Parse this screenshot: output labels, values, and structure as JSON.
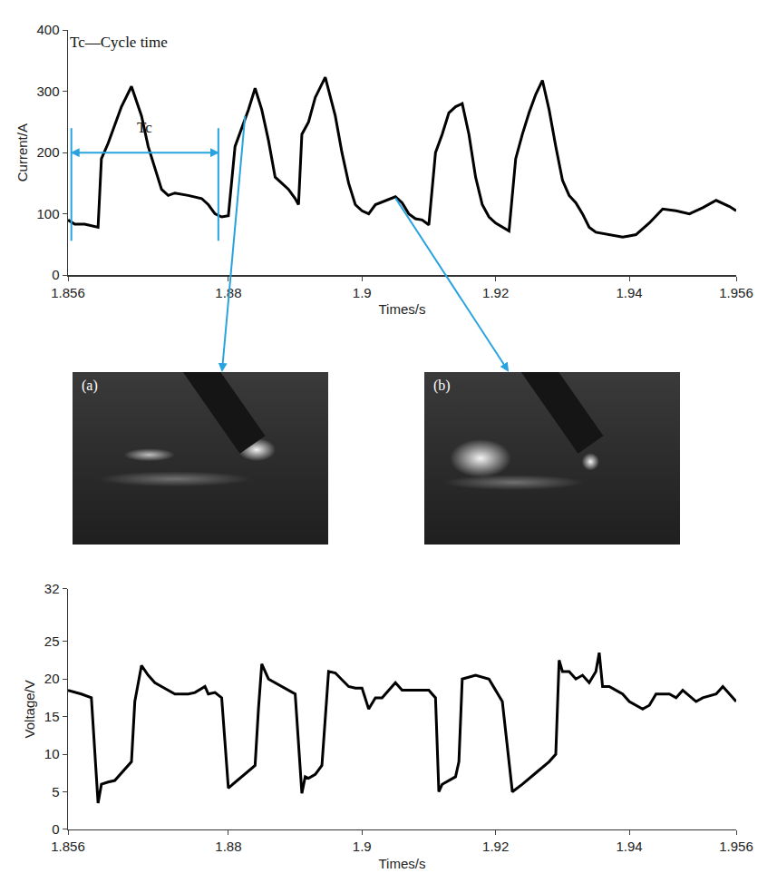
{
  "chart_data": [
    {
      "type": "line",
      "x_label": "Times/s",
      "y_label": "Current/A",
      "annotation": "Tc—Cycle time",
      "cycle": {
        "start": 1.8565,
        "end": 1.8785,
        "label": "Tc"
      },
      "callouts": [
        {
          "x": 1.8825,
          "y": 260,
          "photo": "(a)"
        },
        {
          "x": 1.905,
          "y": 126,
          "photo": "(b)"
        }
      ],
      "xlim": [
        1.856,
        1.956
      ],
      "xticks": [
        1.856,
        1.88,
        1.9,
        1.92,
        1.94,
        1.956
      ],
      "ylim": [
        0,
        400
      ],
      "yticks": [
        0,
        100,
        200,
        300,
        400
      ],
      "grid": false,
      "series": [
        {
          "color": "#000000",
          "x": [
            1.856,
            1.857,
            1.8585,
            1.8595,
            1.8605,
            1.861,
            1.862,
            1.863,
            1.864,
            1.8655,
            1.867,
            1.868,
            1.869,
            1.87,
            1.871,
            1.872,
            1.874,
            1.876,
            1.877,
            1.878,
            1.879,
            1.88,
            1.881,
            1.882,
            1.883,
            1.884,
            1.885,
            1.886,
            1.887,
            1.888,
            1.889,
            1.89,
            1.8905,
            1.891,
            1.892,
            1.893,
            1.8945,
            1.896,
            1.897,
            1.898,
            1.899,
            1.9,
            1.901,
            1.902,
            1.9035,
            1.905,
            1.906,
            1.907,
            1.908,
            1.909,
            1.91,
            1.911,
            1.912,
            1.913,
            1.914,
            1.915,
            1.916,
            1.917,
            1.918,
            1.919,
            1.92,
            1.921,
            1.922,
            1.923,
            1.924,
            1.925,
            1.926,
            1.927,
            1.928,
            1.929,
            1.93,
            1.931,
            1.932,
            1.933,
            1.934,
            1.935,
            1.936,
            1.937,
            1.938,
            1.939,
            1.94,
            1.941,
            1.943,
            1.945,
            1.947,
            1.949,
            1.951,
            1.953,
            1.955,
            1.956
          ],
          "values": [
            90,
            83,
            83,
            80,
            78,
            190,
            215,
            245,
            275,
            308,
            260,
            210,
            175,
            140,
            130,
            134,
            130,
            125,
            115,
            100,
            95,
            97,
            210,
            240,
            270,
            305,
            270,
            220,
            160,
            150,
            140,
            125,
            115,
            230,
            250,
            290,
            323,
            260,
            200,
            150,
            115,
            105,
            100,
            115,
            122,
            128,
            118,
            100,
            92,
            90,
            82,
            200,
            230,
            265,
            275,
            280,
            230,
            160,
            115,
            95,
            85,
            78,
            72,
            190,
            230,
            265,
            295,
            318,
            270,
            210,
            155,
            130,
            118,
            100,
            78,
            70,
            68,
            65,
            64,
            62,
            64,
            66,
            85,
            108,
            105,
            100,
            110,
            122,
            112,
            105
          ]
        }
      ]
    },
    {
      "type": "line",
      "x_label": "Times/s",
      "y_label": "Voltage/V",
      "xlim": [
        1.856,
        1.956
      ],
      "xticks": [
        1.856,
        1.88,
        1.9,
        1.92,
        1.94,
        1.956
      ],
      "ylim": [
        0,
        32
      ],
      "yticks": [
        0,
        5,
        10,
        15,
        20,
        25,
        32
      ],
      "grid": false,
      "series": [
        {
          "color": "#000000",
          "x": [
            1.856,
            1.858,
            1.8595,
            1.8605,
            1.861,
            1.862,
            1.863,
            1.864,
            1.865,
            1.8655,
            1.866,
            1.867,
            1.868,
            1.869,
            1.87,
            1.872,
            1.874,
            1.875,
            1.8765,
            1.877,
            1.878,
            1.879,
            1.88,
            1.882,
            1.884,
            1.8845,
            1.885,
            1.886,
            1.888,
            1.889,
            1.89,
            1.891,
            1.8915,
            1.892,
            1.893,
            1.894,
            1.895,
            1.896,
            1.898,
            1.899,
            1.9,
            1.901,
            1.902,
            1.903,
            1.905,
            1.906,
            1.908,
            1.91,
            1.911,
            1.9115,
            1.912,
            1.914,
            1.9145,
            1.915,
            1.917,
            1.919,
            1.92,
            1.921,
            1.9225,
            1.924,
            1.926,
            1.928,
            1.929,
            1.9295,
            1.93,
            1.931,
            1.932,
            1.933,
            1.934,
            1.935,
            1.9355,
            1.936,
            1.937,
            1.938,
            1.939,
            1.94,
            1.941,
            1.942,
            1.943,
            1.944,
            1.946,
            1.947,
            1.948,
            1.95,
            1.951,
            1.953,
            1.954,
            1.956
          ],
          "values": [
            18.5,
            18,
            17.5,
            3.5,
            6,
            6.3,
            6.5,
            7.5,
            8.5,
            9,
            17,
            21.8,
            20.5,
            19.5,
            19,
            18,
            18,
            18.2,
            19,
            18,
            18.2,
            17.5,
            5.5,
            7,
            8.5,
            16,
            22,
            20,
            19,
            18.5,
            18,
            4.8,
            7,
            6.8,
            7.3,
            8.5,
            21,
            20.8,
            19,
            18.8,
            18.8,
            16,
            17.5,
            17.5,
            19.5,
            18.5,
            18.5,
            18.5,
            17.5,
            5,
            6,
            7,
            9,
            20,
            20.5,
            20,
            18.5,
            17,
            5,
            6,
            7.5,
            9,
            10,
            22.5,
            21,
            21,
            20,
            20.5,
            19.5,
            21,
            23.5,
            19,
            19,
            18.5,
            18,
            17,
            16.5,
            16,
            16.5,
            18,
            18,
            17.5,
            18.5,
            17,
            17.5,
            18,
            19,
            17
          ]
        }
      ]
    }
  ],
  "photos": [
    {
      "label": "(a)"
    },
    {
      "label": "(b)"
    }
  ]
}
